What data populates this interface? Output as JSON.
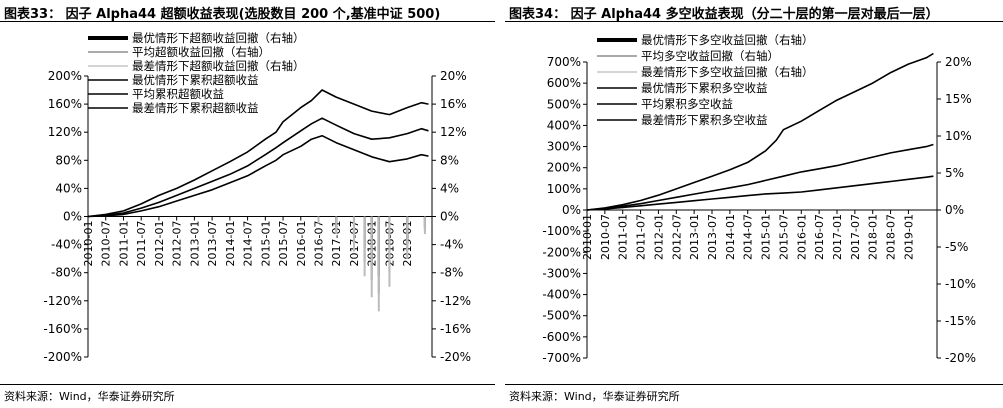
{
  "charts": [
    {
      "title": "图表33：  因子 Alpha44 超额收益表现(选股数目 200 个,基准中证 500)",
      "source": "资料来源：Wind，华泰证券研究所"
    },
    {
      "title": "图表34：  因子 Alpha44 多空收益表现（分二十层的第一层对最后一层）",
      "source": "资料来源：Wind，华泰证券研究所"
    }
  ],
  "chart_data": [
    {
      "type": "line",
      "x_ticks": [
        "2010-01",
        "2010-07",
        "2011-01",
        "2011-07",
        "2012-01",
        "2012-07",
        "2013-01",
        "2013-07",
        "2014-01",
        "2014-07",
        "2015-01",
        "2015-07",
        "2016-01",
        "2016-07",
        "2017-01",
        "2017-07",
        "2018-01",
        "2018-07",
        "2019-01"
      ],
      "y_left": {
        "min": -200,
        "max": 200,
        "step": 40,
        "format": "{v}%"
      },
      "y_right": {
        "min": -20,
        "max": 20,
        "step": 4,
        "format": "{v}%"
      },
      "grid": false,
      "legend_position": "top-left",
      "series": [
        {
          "name": "最优情形下超额收益回撤（右轴）",
          "axis": "right",
          "style": "bar-down",
          "color": "#000000",
          "x": [
            2016.5,
            2017.0,
            2017.5,
            2017.8,
            2018.0,
            2018.2,
            2018.5,
            2019.0,
            2019.5
          ],
          "y": [
            -0.5,
            -1.5,
            -2.5,
            -4.5,
            -7.0,
            -8.5,
            -6.0,
            -4.0,
            -1.5
          ]
        },
        {
          "name": "平均超额收益回撤（右轴）",
          "axis": "right",
          "style": "bar-down",
          "color": "#777777",
          "x": [
            2016.5,
            2017.0,
            2017.5,
            2017.8,
            2018.0,
            2018.2,
            2018.5,
            2019.0,
            2019.5
          ],
          "y": [
            -0.7,
            -2.0,
            -3.5,
            -6.5,
            -9.0,
            -11.0,
            -8.0,
            -5.0,
            -2.0
          ]
        },
        {
          "name": "最差情形下超额收益回撤（右轴）",
          "axis": "right",
          "style": "bar-down",
          "color": "#bbbbbb",
          "x": [
            2016.5,
            2017.0,
            2017.5,
            2017.8,
            2018.0,
            2018.2,
            2018.5,
            2019.0,
            2019.5
          ],
          "y": [
            -1.0,
            -2.5,
            -5.0,
            -8.5,
            -11.5,
            -13.5,
            -10.0,
            -6.0,
            -2.5
          ]
        },
        {
          "name": "最优情形下累积超额收益",
          "axis": "left",
          "style": "line",
          "color": "#000000",
          "x": [
            2010.0,
            2010.5,
            2011.0,
            2011.5,
            2012.0,
            2012.5,
            2013.0,
            2013.5,
            2014.0,
            2014.5,
            2015.0,
            2015.3,
            2015.5,
            2016.0,
            2016.3,
            2016.6,
            2017.0,
            2017.5,
            2018.0,
            2018.5,
            2019.0,
            2019.4,
            2019.6
          ],
          "y": [
            0,
            3,
            8,
            18,
            30,
            40,
            52,
            65,
            78,
            92,
            110,
            120,
            135,
            155,
            165,
            180,
            170,
            160,
            150,
            145,
            155,
            162,
            160
          ]
        },
        {
          "name": "平均累积超额收益",
          "axis": "left",
          "style": "line",
          "color": "#000000",
          "x": [
            2010.0,
            2010.5,
            2011.0,
            2011.5,
            2012.0,
            2012.5,
            2013.0,
            2013.5,
            2014.0,
            2014.5,
            2015.0,
            2015.3,
            2015.5,
            2016.0,
            2016.3,
            2016.6,
            2017.0,
            2017.5,
            2018.0,
            2018.5,
            2019.0,
            2019.4,
            2019.6
          ],
          "y": [
            0,
            2,
            5,
            12,
            20,
            30,
            40,
            50,
            60,
            72,
            88,
            98,
            105,
            122,
            132,
            140,
            130,
            118,
            110,
            112,
            118,
            125,
            122
          ]
        },
        {
          "name": "最差情形下累积超额收益",
          "axis": "left",
          "style": "line",
          "color": "#000000",
          "x": [
            2010.0,
            2010.5,
            2011.0,
            2011.5,
            2012.0,
            2012.5,
            2013.0,
            2013.5,
            2014.0,
            2014.5,
            2015.0,
            2015.3,
            2015.5,
            2016.0,
            2016.3,
            2016.6,
            2017.0,
            2017.5,
            2018.0,
            2018.5,
            2019.0,
            2019.4,
            2019.6
          ],
          "y": [
            0,
            1,
            3,
            8,
            14,
            22,
            30,
            38,
            48,
            58,
            72,
            80,
            88,
            100,
            110,
            115,
            105,
            95,
            85,
            78,
            82,
            88,
            86
          ]
        }
      ]
    },
    {
      "type": "line",
      "x_ticks": [
        "2010-01",
        "2010-07",
        "2011-01",
        "2011-07",
        "2012-01",
        "2012-07",
        "2013-01",
        "2013-07",
        "2014-01",
        "2014-07",
        "2015-01",
        "2015-07",
        "2016-01",
        "2016-07",
        "2017-01",
        "2017-07",
        "2018-01",
        "2018-07",
        "2019-01"
      ],
      "y_left": {
        "min": -700,
        "max": 700,
        "step": 100,
        "format": "{v}%"
      },
      "y_right": {
        "min": -20,
        "max": 20,
        "step": 5,
        "format": "{v}%"
      },
      "grid": false,
      "legend_position": "top-left",
      "series": [
        {
          "name": "最优情形下多空收益回撤（右轴）",
          "axis": "right",
          "style": "bar-down",
          "color": "#000000",
          "x": [],
          "y": []
        },
        {
          "name": "平均多空收益回撤（右轴）",
          "axis": "right",
          "style": "bar-down",
          "color": "#777777",
          "x": [],
          "y": []
        },
        {
          "name": "最差情形下多空收益回撤（右轴）",
          "axis": "right",
          "style": "bar-down",
          "color": "#bbbbbb",
          "x": [],
          "y": []
        },
        {
          "name": "最优情形下累积多空收益",
          "axis": "left",
          "style": "line",
          "color": "#000000",
          "x": [
            2010.0,
            2010.5,
            2011.0,
            2011.5,
            2012.0,
            2012.5,
            2013.0,
            2013.5,
            2014.0,
            2014.5,
            2015.0,
            2015.3,
            2015.5,
            2016.0,
            2016.5,
            2017.0,
            2017.5,
            2018.0,
            2018.5,
            2019.0,
            2019.5,
            2019.7
          ],
          "y": [
            0,
            10,
            25,
            45,
            70,
            100,
            130,
            160,
            190,
            225,
            280,
            330,
            380,
            420,
            470,
            520,
            560,
            600,
            650,
            690,
            720,
            740
          ]
        },
        {
          "name": "平均累积多空收益",
          "axis": "left",
          "style": "line",
          "color": "#000000",
          "x": [
            2010.0,
            2010.5,
            2011.0,
            2011.5,
            2012.0,
            2012.5,
            2013.0,
            2013.5,
            2014.0,
            2014.5,
            2015.0,
            2015.5,
            2016.0,
            2016.5,
            2017.0,
            2017.5,
            2018.0,
            2018.5,
            2019.0,
            2019.5,
            2019.7
          ],
          "y": [
            0,
            8,
            18,
            30,
            45,
            60,
            75,
            90,
            105,
            120,
            140,
            160,
            180,
            195,
            210,
            230,
            250,
            270,
            285,
            300,
            310
          ]
        },
        {
          "name": "最差情形下累积多空收益",
          "axis": "left",
          "style": "line",
          "color": "#000000",
          "x": [
            2010.0,
            2010.5,
            2011.0,
            2011.5,
            2012.0,
            2012.5,
            2013.0,
            2013.5,
            2014.0,
            2014.5,
            2015.0,
            2015.5,
            2016.0,
            2016.5,
            2017.0,
            2017.5,
            2018.0,
            2018.5,
            2019.0,
            2019.5,
            2019.7
          ],
          "y": [
            0,
            5,
            12,
            20,
            28,
            36,
            44,
            52,
            60,
            68,
            76,
            80,
            85,
            95,
            105,
            115,
            125,
            135,
            145,
            155,
            160
          ]
        }
      ]
    }
  ]
}
